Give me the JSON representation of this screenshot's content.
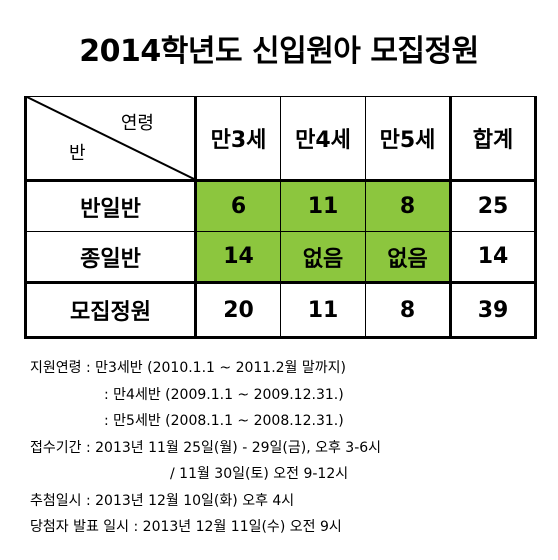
{
  "title": "2014학년도 신입원아 모집정원",
  "table": {
    "corner_top": "연령",
    "corner_bottom": "반",
    "headers": [
      "만3세",
      "만4세",
      "만5세",
      "합계"
    ],
    "rows": [
      {
        "label": "반일반",
        "cells": [
          "6",
          "11",
          "8",
          "25"
        ]
      },
      {
        "label": "종일반",
        "cells": [
          "14",
          "없음",
          "없음",
          "14"
        ]
      }
    ],
    "total": {
      "label": "모집정원",
      "cells": [
        "20",
        "11",
        "8",
        "39"
      ]
    }
  },
  "notes": [
    "지원연령 : 만3세반 (2010.1.1 ~ 2011.2월 말까지)",
    ": 만4세반 (2009.1.1 ~ 2009.12.31.)",
    ": 만5세반 (2008.1.1 ~ 2008.12.31.)",
    "접수기간 : 2013년 11월 25일(월) - 29일(금), 오후 3-6시",
    "/ 11월 30일(토) 오전 9-12시",
    "추첨일시 : 2013년 12월 10일(화) 오후 4시",
    "당첨자 발표 일시 : 2013년 12월 11일(수) 오전 9시"
  ],
  "colors": {
    "highlight": "#8cc63e"
  }
}
